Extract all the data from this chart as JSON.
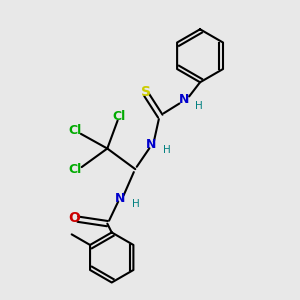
{
  "bg_color": "#e8e8e8",
  "bond_color": "#000000",
  "bond_width": 1.5,
  "N_color": "#0000cc",
  "O_color": "#cc0000",
  "S_color": "#cccc00",
  "Cl_color": "#00aa00",
  "H_color": "#008080",
  "font_size": 9,
  "figsize": [
    3.0,
    3.0
  ],
  "dpi": 100,
  "xlim": [
    0,
    10
  ],
  "ylim": [
    0,
    10
  ]
}
